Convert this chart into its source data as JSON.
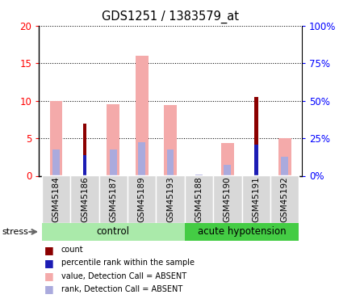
{
  "title": "GDS1251 / 1383579_at",
  "samples": [
    "GSM45184",
    "GSM45186",
    "GSM45187",
    "GSM45189",
    "GSM45193",
    "GSM45188",
    "GSM45190",
    "GSM45191",
    "GSM45192"
  ],
  "value_absent": [
    10.0,
    null,
    9.5,
    16.0,
    9.4,
    null,
    4.4,
    null,
    5.0
  ],
  "rank_absent_pct": [
    17.5,
    null,
    17.5,
    22.5,
    17.5,
    1.0,
    7.5,
    null,
    12.5
  ],
  "count": [
    null,
    7.0,
    null,
    null,
    null,
    null,
    null,
    10.5,
    null
  ],
  "percentile_pct": [
    null,
    14.0,
    null,
    null,
    null,
    null,
    null,
    21.0,
    null
  ],
  "ylim_left": [
    0,
    20
  ],
  "ylim_right": [
    0,
    100
  ],
  "yticks_left": [
    0,
    5,
    10,
    15,
    20
  ],
  "yticks_right": [
    0,
    25,
    50,
    75,
    100
  ],
  "yticklabels_left": [
    "0",
    "5",
    "10",
    "15",
    "20"
  ],
  "yticklabels_right": [
    "0%",
    "25%",
    "50%",
    "75%",
    "100%"
  ],
  "color_count": "#8B0000",
  "color_percentile": "#1C1CB4",
  "color_value_absent": "#F4AAAA",
  "color_rank_absent": "#AAAADD",
  "group_control_color": "#AAEAAA",
  "group_acute_color": "#44CC44",
  "n_control": 5,
  "n_acute": 4,
  "bar_width": 0.45
}
